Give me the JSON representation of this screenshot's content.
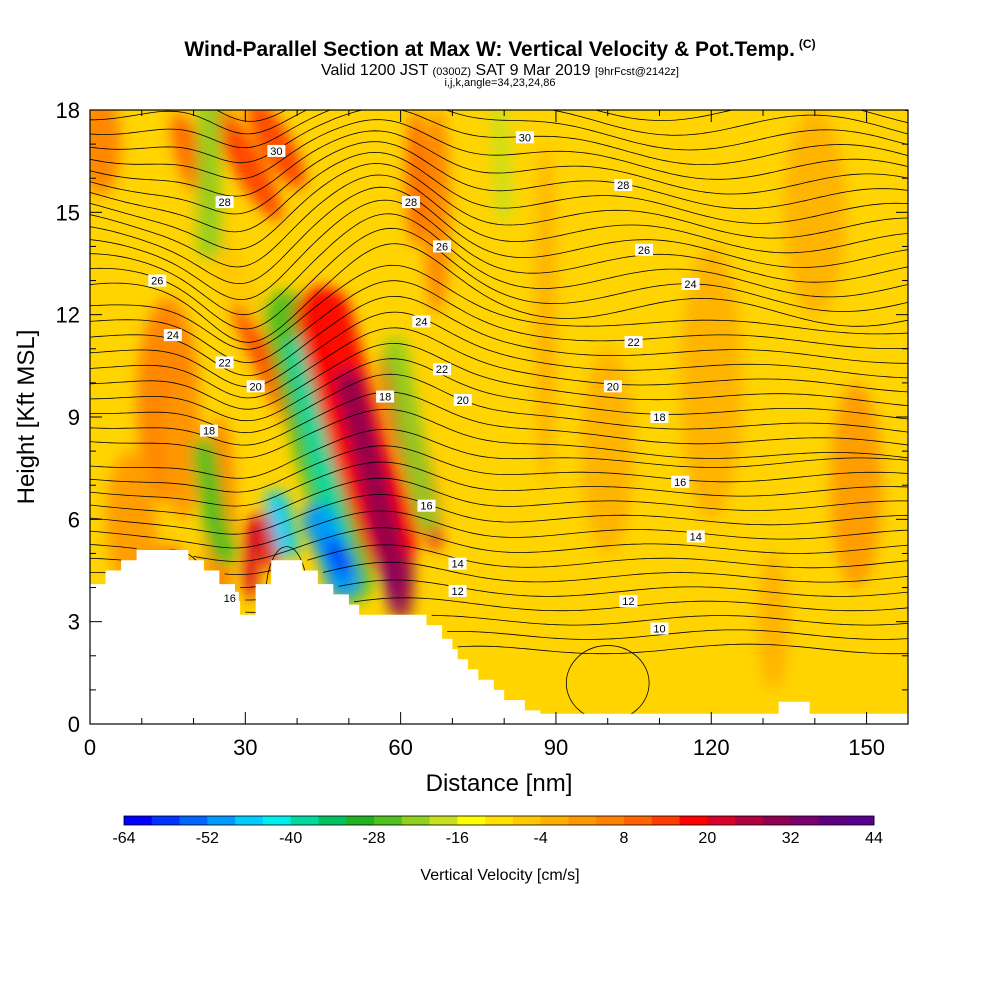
{
  "title": {
    "main": "Wind-Parallel Section at Max W: Vertical Velocity & Pot.Temp.",
    "mark": "(C)",
    "valid_prefix": "Valid 1200 JST",
    "valid_z": "(0300Z)",
    "valid_date": "SAT 9 Mar 2019",
    "fcst": "[9hrFcst@2142z]",
    "indices": "i,j,k,angle=34,23,24,86"
  },
  "chart_data": {
    "type": "heatmap",
    "xlabel": "Distance [nm]",
    "ylabel": "Height [Kft MSL]",
    "xlim": [
      0,
      158
    ],
    "ylim": [
      0,
      18
    ],
    "x_ticks": [
      "0",
      "30",
      "60",
      "90",
      "120",
      "150"
    ],
    "y_ticks": [
      "0",
      "3",
      "6",
      "9",
      "12",
      "15",
      "18"
    ],
    "colorbar": {
      "label": "Vertical Velocity [cm/s]",
      "min": -64,
      "max": 44,
      "step": 4,
      "tick_labels": [
        "-64",
        "-52",
        "-40",
        "-28",
        "-16",
        "-4",
        "8",
        "20",
        "32",
        "44"
      ],
      "colors": [
        "#0000ff",
        "#0033ff",
        "#0066ff",
        "#0099ff",
        "#00ccff",
        "#00eeee",
        "#00d8a0",
        "#00c060",
        "#20b020",
        "#50c020",
        "#90d020",
        "#c8e020",
        "#ffff00",
        "#ffe000",
        "#ffc800",
        "#ffb000",
        "#ff9800",
        "#ff8000",
        "#ff6400",
        "#ff3c00",
        "#ff0000",
        "#d8002a",
        "#b00040",
        "#900050",
        "#7a0070",
        "#600080",
        "#5a0090"
      ]
    },
    "contours": {
      "field": "Potential Temperature (C)",
      "levels": [
        10,
        12,
        14,
        16,
        18,
        20,
        22,
        24,
        26,
        28,
        30
      ],
      "labels": [
        {
          "text": "30",
          "x": 84,
          "y": 17.2
        },
        {
          "text": "30",
          "x": 36,
          "y": 16.8
        },
        {
          "text": "28",
          "x": 26,
          "y": 15.3
        },
        {
          "text": "28",
          "x": 62,
          "y": 15.3
        },
        {
          "text": "28",
          "x": 103,
          "y": 15.8
        },
        {
          "text": "26",
          "x": 68,
          "y": 14.0
        },
        {
          "text": "26",
          "x": 107,
          "y": 13.9
        },
        {
          "text": "26",
          "x": 13,
          "y": 13.0
        },
        {
          "text": "24",
          "x": 116,
          "y": 12.9
        },
        {
          "text": "24",
          "x": 64,
          "y": 11.8
        },
        {
          "text": "24",
          "x": 16,
          "y": 11.4
        },
        {
          "text": "22",
          "x": 105,
          "y": 11.2
        },
        {
          "text": "22",
          "x": 26,
          "y": 10.6
        },
        {
          "text": "22",
          "x": 68,
          "y": 10.4
        },
        {
          "text": "20",
          "x": 32,
          "y": 9.9
        },
        {
          "text": "20",
          "x": 72,
          "y": 9.5
        },
        {
          "text": "20",
          "x": 101,
          "y": 9.9
        },
        {
          "text": "18",
          "x": 57,
          "y": 9.6
        },
        {
          "text": "18",
          "x": 110,
          "y": 9.0
        },
        {
          "text": "18",
          "x": 23,
          "y": 8.6
        },
        {
          "text": "16",
          "x": 114,
          "y": 7.1
        },
        {
          "text": "16",
          "x": 65,
          "y": 6.4
        },
        {
          "text": "16",
          "x": 27,
          "y": 3.7
        },
        {
          "text": "14",
          "x": 71,
          "y": 4.7
        },
        {
          "text": "14",
          "x": 117,
          "y": 5.5
        },
        {
          "text": "12",
          "x": 71,
          "y": 3.9
        },
        {
          "text": "12",
          "x": 104,
          "y": 3.6
        },
        {
          "text": "10",
          "x": 110,
          "y": 2.8
        }
      ]
    },
    "terrain": [
      [
        0,
        4.1
      ],
      [
        3,
        4.1
      ],
      [
        3,
        4.5
      ],
      [
        6,
        4.5
      ],
      [
        6,
        4.8
      ],
      [
        9,
        4.8
      ],
      [
        9,
        5.1
      ],
      [
        19,
        5.1
      ],
      [
        19,
        4.8
      ],
      [
        22,
        4.8
      ],
      [
        22,
        4.5
      ],
      [
        25,
        4.5
      ],
      [
        25,
        4.1
      ],
      [
        28,
        4.1
      ],
      [
        28,
        3.6
      ],
      [
        29,
        3.6
      ],
      [
        29,
        3.2
      ],
      [
        32,
        3.2
      ],
      [
        32,
        4.1
      ],
      [
        35,
        4.1
      ],
      [
        35,
        4.8
      ],
      [
        41,
        4.8
      ],
      [
        41,
        4.5
      ],
      [
        44,
        4.5
      ],
      [
        44,
        4.1
      ],
      [
        47,
        4.1
      ],
      [
        47,
        3.8
      ],
      [
        50,
        3.8
      ],
      [
        50,
        3.5
      ],
      [
        52,
        3.5
      ],
      [
        52,
        3.2
      ],
      [
        65,
        3.2
      ],
      [
        65,
        2.9
      ],
      [
        68,
        2.9
      ],
      [
        68,
        2.5
      ],
      [
        70,
        2.5
      ],
      [
        70,
        2.2
      ],
      [
        71,
        2.2
      ],
      [
        71,
        1.9
      ],
      [
        73,
        1.9
      ],
      [
        73,
        1.6
      ],
      [
        75,
        1.6
      ],
      [
        75,
        1.3
      ],
      [
        78,
        1.3
      ],
      [
        78,
        1.0
      ],
      [
        80,
        1.0
      ],
      [
        80,
        0.7
      ],
      [
        84,
        0.7
      ],
      [
        84,
        0.4
      ],
      [
        87,
        0.4
      ],
      [
        87,
        0.3
      ],
      [
        133,
        0.3
      ],
      [
        133,
        0.65
      ],
      [
        139,
        0.65
      ],
      [
        139,
        0.3
      ],
      [
        158,
        0.3
      ]
    ]
  }
}
